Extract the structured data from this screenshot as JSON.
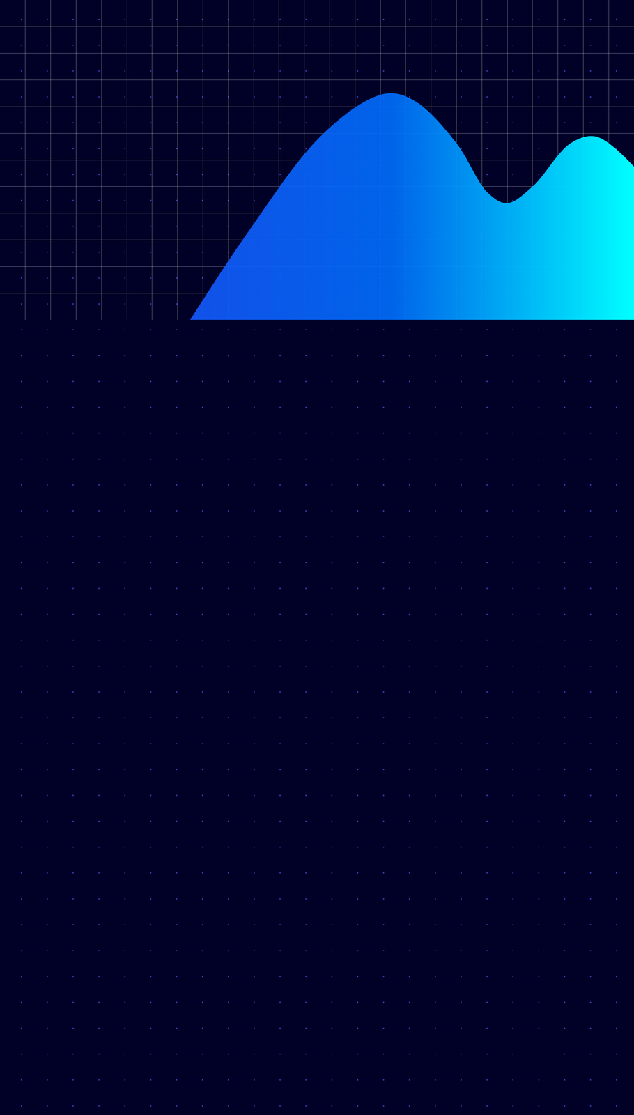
{
  "chart_data": {
    "type": "area",
    "x": [
      30,
      39,
      50,
      58,
      62,
      66,
      72,
      77,
      80,
      84,
      90,
      94,
      100
    ],
    "series": [
      {
        "values": [
          0,
          26,
          54,
          66,
          68,
          65,
          53,
          38,
          35,
          40,
          53,
          55,
          46
        ],
        "color": "#00ffff"
      }
    ],
    "xlim": [
      0,
      100
    ],
    "ylim": [
      0,
      96
    ],
    "xticks": [
      0,
      4,
      8,
      12,
      16,
      20,
      24,
      28,
      32,
      36,
      40,
      44,
      48,
      52,
      56,
      60,
      64,
      68,
      72,
      76,
      80,
      84,
      88,
      92,
      96,
      100
    ],
    "yticks": [
      0,
      8,
      16,
      24,
      32,
      40,
      48,
      56,
      64,
      72,
      80,
      88,
      96
    ],
    "grid": true,
    "tick_labels": false
  }
}
